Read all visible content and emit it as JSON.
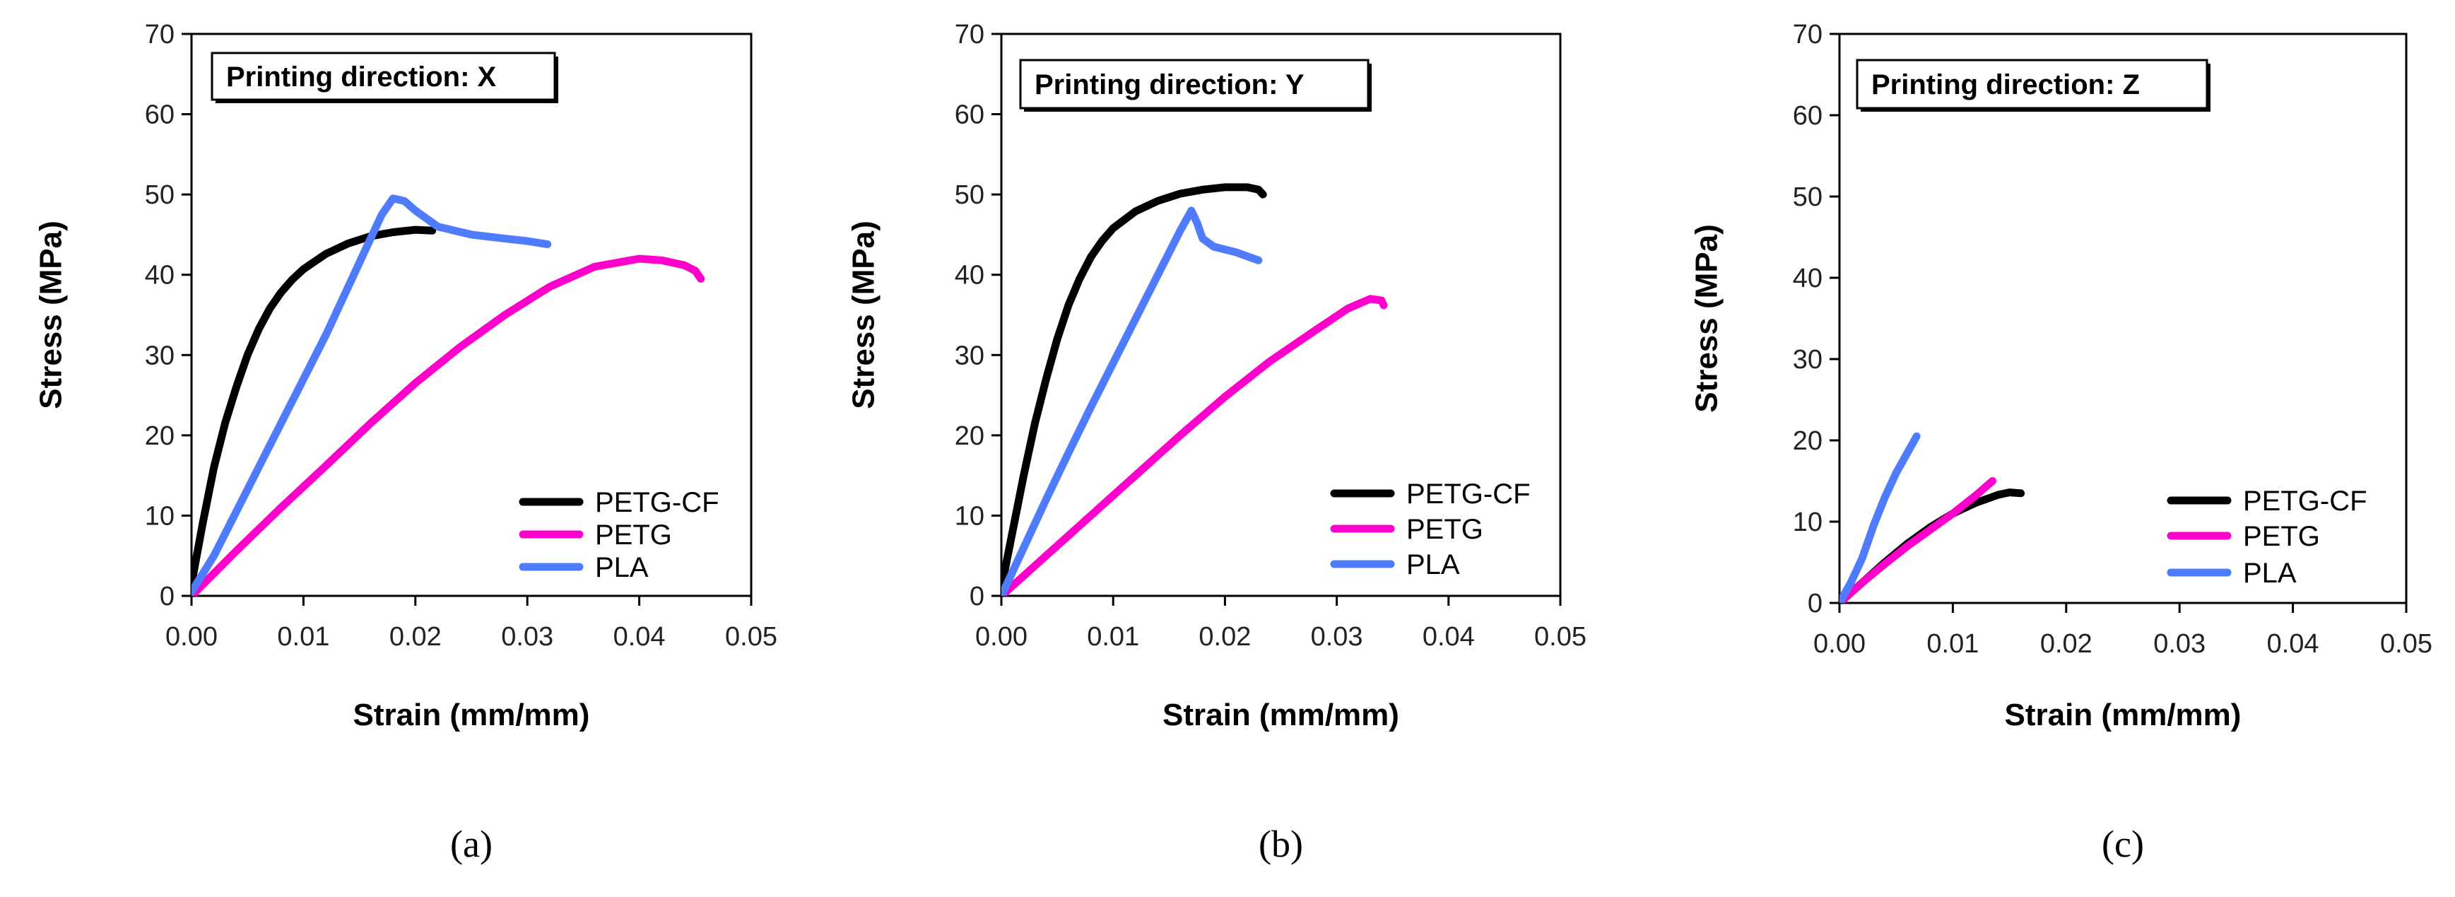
{
  "chart_data": [
    {
      "type": "line",
      "panel_label": "(a)",
      "title": "Printing direction: X",
      "xlabel": "Strain (mm/mm)",
      "ylabel": "Stress (MPa)",
      "xlim": [
        0,
        0.05
      ],
      "ylim": [
        0,
        70
      ],
      "x_ticks": [
        0,
        0.01,
        0.02,
        0.03,
        0.04,
        0.05
      ],
      "x_tick_labels": [
        "0.00",
        "0.01",
        "0.02",
        "0.03",
        "0.04",
        "0.05"
      ],
      "y_ticks": [
        0,
        10,
        20,
        30,
        40,
        50,
        60,
        70
      ],
      "y_tick_labels": [
        "0",
        "10",
        "20",
        "30",
        "40",
        "50",
        "60",
        "70"
      ],
      "legend_position": "bottom-right",
      "series": [
        {
          "name": "PETG-CF",
          "color": "#000000",
          "points": [
            [
              0,
              1.5
            ],
            [
              0.001,
              9
            ],
            [
              0.002,
              16
            ],
            [
              0.003,
              21.5
            ],
            [
              0.004,
              26
            ],
            [
              0.005,
              30
            ],
            [
              0.006,
              33.2
            ],
            [
              0.007,
              35.8
            ],
            [
              0.008,
              37.8
            ],
            [
              0.009,
              39.4
            ],
            [
              0.01,
              40.7
            ],
            [
              0.012,
              42.6
            ],
            [
              0.014,
              43.9
            ],
            [
              0.016,
              44.8
            ],
            [
              0.018,
              45.3
            ],
            [
              0.02,
              45.6
            ],
            [
              0.0215,
              45.5
            ]
          ]
        },
        {
          "name": "PETG",
          "color": "#ff00cc",
          "points": [
            [
              0,
              0
            ],
            [
              0.004,
              5.6
            ],
            [
              0.008,
              11
            ],
            [
              0.012,
              16.2
            ],
            [
              0.016,
              21.5
            ],
            [
              0.02,
              26.5
            ],
            [
              0.024,
              31
            ],
            [
              0.028,
              35
            ],
            [
              0.032,
              38.5
            ],
            [
              0.036,
              41
            ],
            [
              0.04,
              42
            ],
            [
              0.042,
              41.8
            ],
            [
              0.044,
              41.2
            ],
            [
              0.045,
              40.5
            ],
            [
              0.0455,
              39.5
            ]
          ]
        },
        {
          "name": "PLA",
          "color": "#4f7cff",
          "points": [
            [
              0,
              0.5
            ],
            [
              0.002,
              5
            ],
            [
              0.004,
              10.5
            ],
            [
              0.006,
              16
            ],
            [
              0.008,
              21.5
            ],
            [
              0.01,
              27
            ],
            [
              0.012,
              32.5
            ],
            [
              0.014,
              38.5
            ],
            [
              0.016,
              44.5
            ],
            [
              0.017,
              47.5
            ],
            [
              0.018,
              49.5
            ],
            [
              0.019,
              49.2
            ],
            [
              0.02,
              48
            ],
            [
              0.022,
              46
            ],
            [
              0.025,
              45
            ],
            [
              0.028,
              44.5
            ],
            [
              0.03,
              44.2
            ],
            [
              0.0318,
              43.8
            ]
          ]
        }
      ]
    },
    {
      "type": "line",
      "panel_label": "(b)",
      "title": "Printing direction: Y",
      "xlabel": "Strain (mm/mm)",
      "ylabel": "Stress (MPa)",
      "xlim": [
        0,
        0.05
      ],
      "ylim": [
        0,
        70
      ],
      "x_ticks": [
        0,
        0.01,
        0.02,
        0.03,
        0.04,
        0.05
      ],
      "x_tick_labels": [
        "0.00",
        "0.01",
        "0.02",
        "0.03",
        "0.04",
        "0.05"
      ],
      "y_ticks": [
        0,
        10,
        20,
        30,
        40,
        50,
        60,
        70
      ],
      "y_tick_labels": [
        "0",
        "10",
        "20",
        "30",
        "40",
        "50",
        "60",
        "70"
      ],
      "legend_position": "bottom-right",
      "series": [
        {
          "name": "PETG-CF",
          "color": "#000000",
          "points": [
            [
              0,
              1
            ],
            [
              0.001,
              8
            ],
            [
              0.002,
              15
            ],
            [
              0.003,
              21.5
            ],
            [
              0.004,
              27
            ],
            [
              0.005,
              32
            ],
            [
              0.006,
              36.2
            ],
            [
              0.007,
              39.5
            ],
            [
              0.008,
              42.2
            ],
            [
              0.009,
              44.2
            ],
            [
              0.01,
              45.8
            ],
            [
              0.012,
              47.9
            ],
            [
              0.014,
              49.2
            ],
            [
              0.016,
              50.1
            ],
            [
              0.018,
              50.6
            ],
            [
              0.02,
              50.9
            ],
            [
              0.022,
              50.9
            ],
            [
              0.023,
              50.6
            ],
            [
              0.0234,
              50
            ]
          ]
        },
        {
          "name": "PETG",
          "color": "#ff00cc",
          "points": [
            [
              0,
              0
            ],
            [
              0.004,
              5
            ],
            [
              0.008,
              10
            ],
            [
              0.012,
              15
            ],
            [
              0.016,
              20
            ],
            [
              0.02,
              24.8
            ],
            [
              0.024,
              29.2
            ],
            [
              0.028,
              33
            ],
            [
              0.031,
              35.8
            ],
            [
              0.033,
              37
            ],
            [
              0.034,
              36.8
            ],
            [
              0.0342,
              36.2
            ]
          ]
        },
        {
          "name": "PLA",
          "color": "#4f7cff",
          "points": [
            [
              0,
              0
            ],
            [
              0.002,
              6
            ],
            [
              0.004,
              12
            ],
            [
              0.006,
              17.8
            ],
            [
              0.008,
              23.5
            ],
            [
              0.01,
              29
            ],
            [
              0.012,
              34.5
            ],
            [
              0.014,
              40
            ],
            [
              0.016,
              45.5
            ],
            [
              0.017,
              48
            ],
            [
              0.0175,
              46.5
            ],
            [
              0.018,
              44.5
            ],
            [
              0.019,
              43.5
            ],
            [
              0.021,
              42.8
            ],
            [
              0.023,
              41.8
            ]
          ]
        }
      ]
    },
    {
      "type": "line",
      "panel_label": "(c)",
      "title": "Printing direction: Z",
      "xlabel": "Strain (mm/mm)",
      "ylabel": "Stress (MPa)",
      "xlim": [
        0,
        0.05
      ],
      "ylim": [
        0,
        70
      ],
      "x_ticks": [
        0,
        0.01,
        0.02,
        0.03,
        0.04,
        0.05
      ],
      "x_tick_labels": [
        "0.00",
        "0.01",
        "0.02",
        "0.03",
        "0.04",
        "0.05"
      ],
      "y_ticks": [
        0,
        10,
        20,
        30,
        40,
        50,
        60,
        70
      ],
      "y_tick_labels": [
        "0",
        "10",
        "20",
        "30",
        "40",
        "50",
        "60",
        "70"
      ],
      "legend_position": "bottom-right",
      "series": [
        {
          "name": "PETG-CF",
          "color": "#000000",
          "points": [
            [
              0,
              0
            ],
            [
              0.002,
              2.5
            ],
            [
              0.004,
              5
            ],
            [
              0.006,
              7.3
            ],
            [
              0.008,
              9.3
            ],
            [
              0.01,
              11
            ],
            [
              0.012,
              12.3
            ],
            [
              0.014,
              13.3
            ],
            [
              0.015,
              13.6
            ],
            [
              0.016,
              13.5
            ]
          ]
        },
        {
          "name": "PETG",
          "color": "#ff00cc",
          "points": [
            [
              0,
              0
            ],
            [
              0.002,
              2.5
            ],
            [
              0.004,
              4.8
            ],
            [
              0.006,
              7
            ],
            [
              0.008,
              9
            ],
            [
              0.01,
              11
            ],
            [
              0.012,
              13.2
            ],
            [
              0.0135,
              15
            ]
          ]
        },
        {
          "name": "PLA",
          "color": "#4f7cff",
          "points": [
            [
              0,
              0
            ],
            [
              0.001,
              2.5
            ],
            [
              0.002,
              5.5
            ],
            [
              0.003,
              9.5
            ],
            [
              0.004,
              13
            ],
            [
              0.005,
              16
            ],
            [
              0.006,
              18.5
            ],
            [
              0.0068,
              20.5
            ]
          ]
        }
      ]
    }
  ]
}
